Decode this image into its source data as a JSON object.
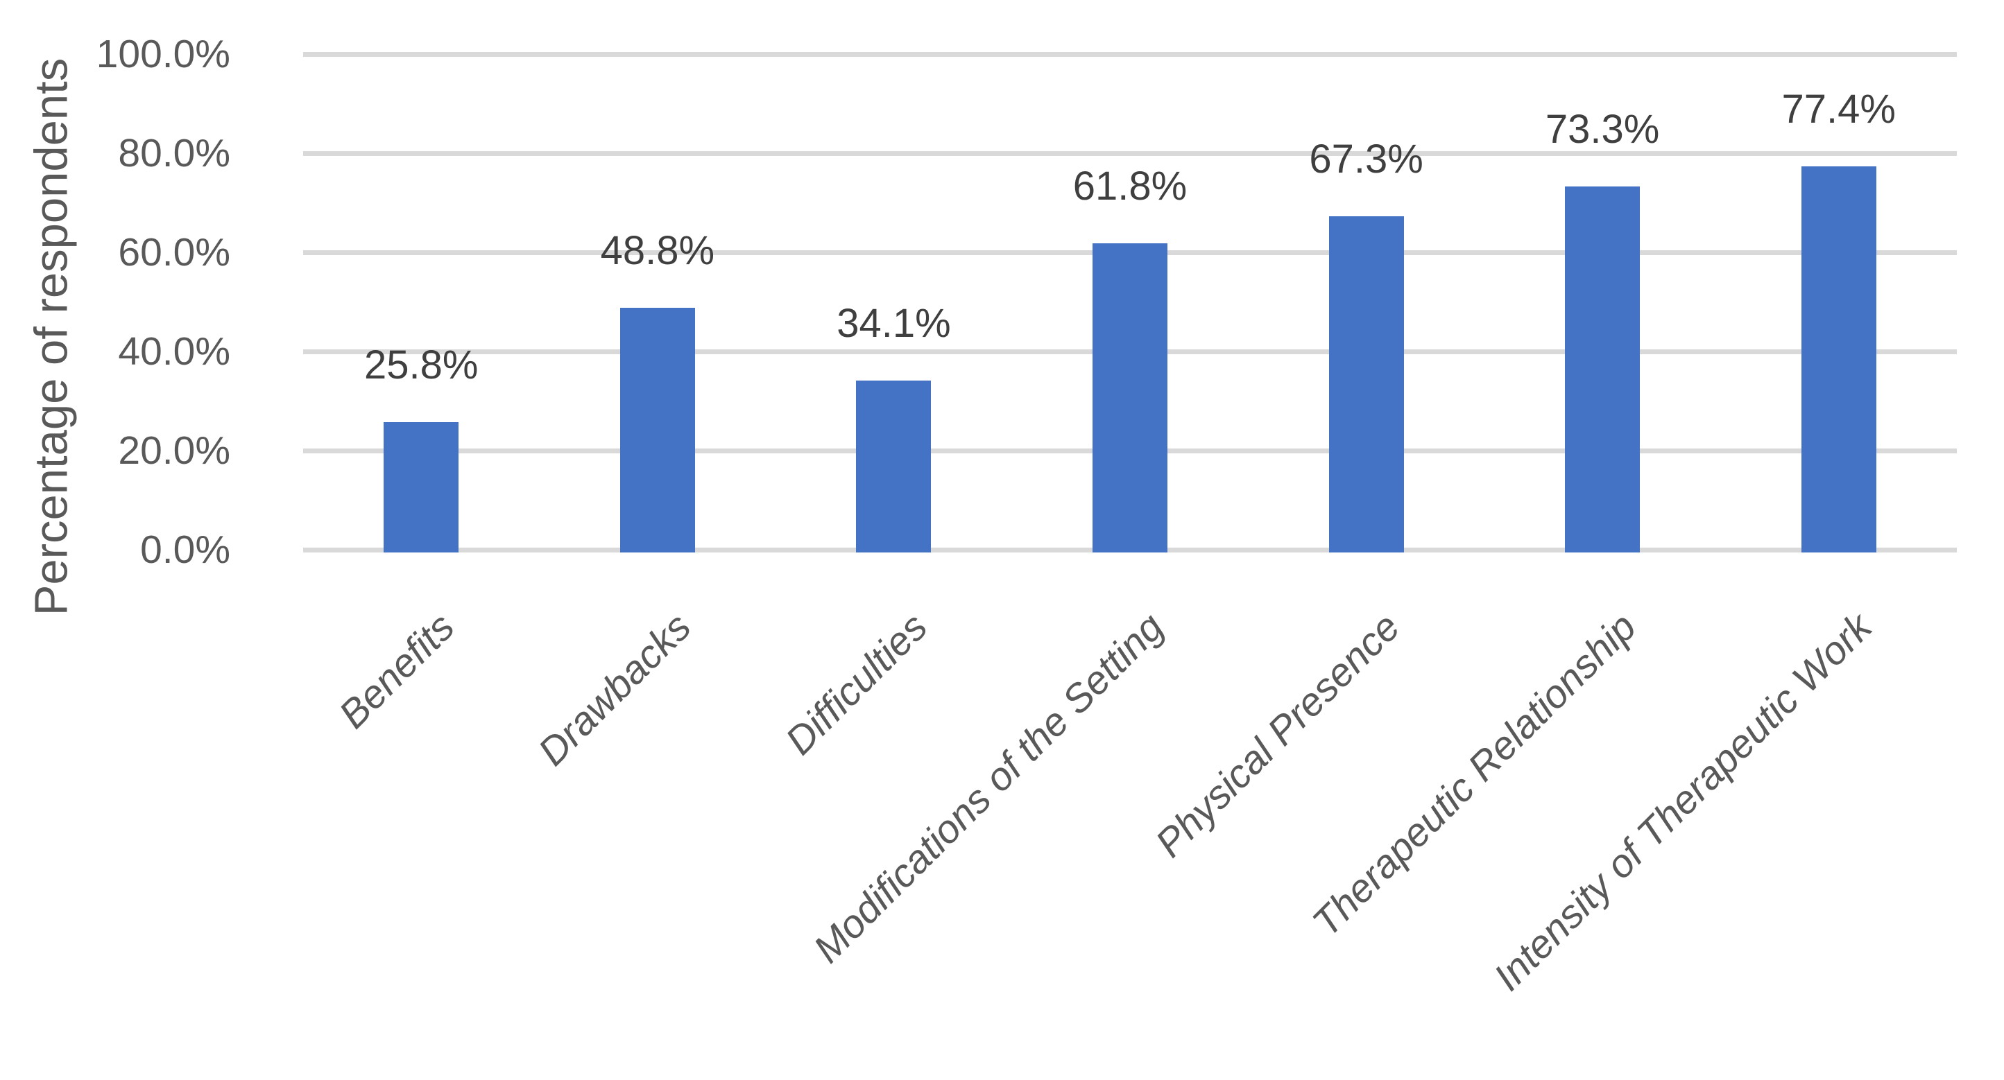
{
  "chart_data": {
    "type": "bar",
    "title": "",
    "xlabel": "",
    "ylabel": "Percentage of respondents",
    "categories": [
      "Benefits",
      "Drawbacks",
      "Difficulties",
      "Modifications of the Setting",
      "Physical Presence",
      "Therapeutic Relationship",
      "Intensity of Therapeutic Work"
    ],
    "values": [
      25.8,
      48.8,
      34.1,
      61.8,
      67.3,
      73.3,
      77.4
    ],
    "value_labels": [
      "25.8%",
      "48.8%",
      "34.1%",
      "61.8%",
      "67.3%",
      "73.3%",
      "77.4%"
    ],
    "y_ticks": [
      {
        "value": 0,
        "label": "0.0%"
      },
      {
        "value": 20,
        "label": "20.0%"
      },
      {
        "value": 40,
        "label": "40.0%"
      },
      {
        "value": 60,
        "label": "60.0%"
      },
      {
        "value": 80,
        "label": "80.0%"
      },
      {
        "value": 100,
        "label": "100.0%"
      }
    ],
    "ylim": [
      0,
      100
    ],
    "grid": true,
    "legend": "none",
    "bar_color": "#4472C4",
    "gridline_color": "#D9D9D9",
    "text_color": "#595959",
    "value_label_color": "#3f3f3f"
  }
}
